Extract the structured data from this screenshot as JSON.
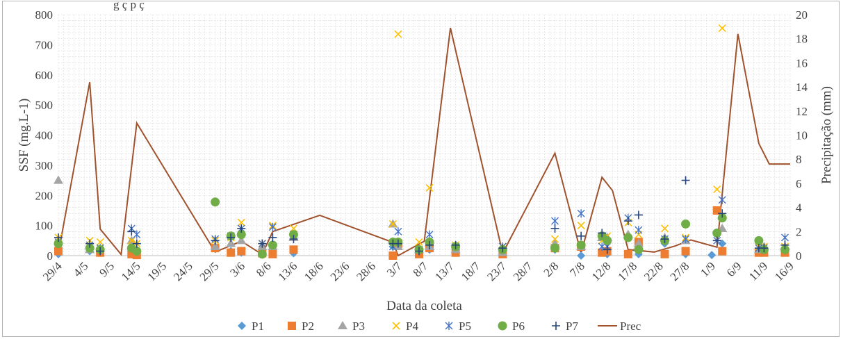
{
  "caption_fragment": "g                                         ç                                          p                                            ç",
  "chart_data": {
    "type": "scatter",
    "xlabel": "Data da coleta",
    "ylabel": "SSF (mg.L-1)",
    "y2label": "Precipitação (mm)",
    "ylim": [
      0,
      800
    ],
    "y2lim": [
      0,
      20
    ],
    "yticks": [
      0,
      100,
      200,
      300,
      400,
      500,
      600,
      700,
      800
    ],
    "y2ticks": [
      0,
      2,
      4,
      6,
      8,
      10,
      12,
      14,
      16,
      18,
      20
    ],
    "xlim": [
      "2018-04-29",
      "2018-09-16"
    ],
    "x_tick_labels": [
      "29/4",
      "4/5",
      "9/5",
      "14/5",
      "19/5",
      "24/5",
      "29/5",
      "3/6",
      "8/6",
      "13/6",
      "18/6",
      "23/6",
      "28/6",
      "3/7",
      "8/7",
      "13/7",
      "18/7",
      "23/7",
      "28/7",
      "2/8",
      "7/8",
      "12/8",
      "17/8",
      "22/8",
      "27/8",
      "1/9",
      "6/9",
      "11/9",
      "16/9"
    ],
    "x_tick_dates": [
      "2018-04-29",
      "2018-05-04",
      "2018-05-09",
      "2018-05-14",
      "2018-05-19",
      "2018-05-24",
      "2018-05-29",
      "2018-06-03",
      "2018-06-08",
      "2018-06-13",
      "2018-06-18",
      "2018-06-23",
      "2018-06-28",
      "2018-07-03",
      "2018-07-08",
      "2018-07-13",
      "2018-07-18",
      "2018-07-23",
      "2018-07-28",
      "2018-08-02",
      "2018-08-07",
      "2018-08-12",
      "2018-08-17",
      "2018-08-22",
      "2018-08-27",
      "2018-09-01",
      "2018-09-06",
      "2018-09-11",
      "2018-09-16"
    ],
    "gridlines": "minor-dashed",
    "legend_position": "bottom",
    "series": [
      {
        "name": "P1",
        "marker": "diamond",
        "color": "#5b9bd5",
        "axis": "left",
        "x": [
          "2018-04-29",
          "2018-05-05",
          "2018-05-07",
          "2018-05-13",
          "2018-05-14",
          "2018-05-29",
          "2018-06-01",
          "2018-06-03",
          "2018-06-07",
          "2018-06-09",
          "2018-06-13",
          "2018-07-02",
          "2018-07-03",
          "2018-07-07",
          "2018-07-09",
          "2018-07-14",
          "2018-07-23",
          "2018-08-02",
          "2018-08-07",
          "2018-08-11",
          "2018-08-12",
          "2018-08-16",
          "2018-08-18",
          "2018-08-23",
          "2018-08-27",
          "2018-09-01",
          "2018-09-03",
          "2018-09-10",
          "2018-09-11",
          "2018-09-15"
        ],
        "y": [
          5,
          15,
          10,
          5,
          2,
          30,
          15,
          10,
          8,
          10,
          8,
          30,
          35,
          10,
          20,
          10,
          10,
          20,
          0,
          10,
          5,
          5,
          5,
          40,
          5,
          2,
          40,
          15,
          10,
          10
        ]
      },
      {
        "name": "P2",
        "marker": "square",
        "color": "#ed7d31",
        "axis": "left",
        "x": [
          "2018-04-29",
          "2018-05-07",
          "2018-05-13",
          "2018-05-14",
          "2018-05-29",
          "2018-06-01",
          "2018-06-03",
          "2018-06-07",
          "2018-06-09",
          "2018-06-13",
          "2018-07-02",
          "2018-07-03",
          "2018-07-07",
          "2018-07-09",
          "2018-07-14",
          "2018-07-23",
          "2018-08-02",
          "2018-08-07",
          "2018-08-11",
          "2018-08-12",
          "2018-08-16",
          "2018-08-18",
          "2018-08-23",
          "2018-08-27",
          "2018-09-02",
          "2018-09-03",
          "2018-09-10",
          "2018-09-11",
          "2018-09-15"
        ],
        "y": [
          15,
          10,
          5,
          2,
          25,
          10,
          15,
          8,
          5,
          20,
          0,
          40,
          5,
          25,
          10,
          5,
          25,
          30,
          10,
          15,
          5,
          45,
          5,
          15,
          150,
          15,
          10,
          10,
          10
        ]
      },
      {
        "name": "P3",
        "marker": "triangle",
        "color": "#a5a5a5",
        "axis": "left",
        "x": [
          "2018-04-29",
          "2018-05-05",
          "2018-05-13",
          "2018-05-29",
          "2018-06-01",
          "2018-06-03",
          "2018-06-07",
          "2018-06-09",
          "2018-06-13",
          "2018-07-02",
          "2018-07-03",
          "2018-07-07",
          "2018-07-09",
          "2018-07-14",
          "2018-07-23",
          "2018-08-02",
          "2018-08-07",
          "2018-08-11",
          "2018-08-12",
          "2018-08-16",
          "2018-08-18",
          "2018-08-23",
          "2018-08-27",
          "2018-09-03",
          "2018-09-10",
          "2018-09-11",
          "2018-09-15"
        ],
        "y": [
          250,
          20,
          50,
          30,
          40,
          50,
          30,
          30,
          60,
          105,
          30,
          20,
          30,
          20,
          10,
          40,
          30,
          60,
          60,
          70,
          40,
          60,
          50,
          90,
          20,
          30,
          30
        ]
      },
      {
        "name": "P4",
        "marker": "x",
        "color": "#ffc000",
        "axis": "left",
        "x": [
          "2018-04-29",
          "2018-05-05",
          "2018-05-07",
          "2018-05-13",
          "2018-05-14",
          "2018-05-29",
          "2018-06-01",
          "2018-06-03",
          "2018-06-07",
          "2018-06-09",
          "2018-06-13",
          "2018-07-02",
          "2018-07-03",
          "2018-07-07",
          "2018-07-09",
          "2018-07-14",
          "2018-07-23",
          "2018-08-02",
          "2018-08-07",
          "2018-08-11",
          "2018-08-12",
          "2018-08-16",
          "2018-08-18",
          "2018-08-23",
          "2018-08-27",
          "2018-09-02",
          "2018-09-03",
          "2018-09-10",
          "2018-09-11",
          "2018-09-15"
        ],
        "y": [
          60,
          50,
          45,
          50,
          40,
          50,
          60,
          110,
          40,
          100,
          90,
          105,
          735,
          45,
          225,
          35,
          30,
          55,
          100,
          50,
          65,
          110,
          70,
          90,
          60,
          220,
          755,
          30,
          30,
          30
        ]
      },
      {
        "name": "P5",
        "marker": "star",
        "color": "#4472c4",
        "axis": "left",
        "x": [
          "2018-04-29",
          "2018-05-05",
          "2018-05-07",
          "2018-05-13",
          "2018-05-14",
          "2018-05-29",
          "2018-06-01",
          "2018-06-03",
          "2018-06-07",
          "2018-06-09",
          "2018-06-13",
          "2018-07-02",
          "2018-07-03",
          "2018-07-07",
          "2018-07-09",
          "2018-07-14",
          "2018-07-23",
          "2018-08-02",
          "2018-08-07",
          "2018-08-11",
          "2018-08-12",
          "2018-08-16",
          "2018-08-18",
          "2018-08-23",
          "2018-08-27",
          "2018-09-02",
          "2018-09-03",
          "2018-09-10",
          "2018-09-11",
          "2018-09-15"
        ],
        "y": [
          45,
          35,
          25,
          90,
          70,
          55,
          65,
          90,
          40,
          95,
          70,
          30,
          80,
          20,
          70,
          30,
          30,
          115,
          140,
          30,
          30,
          125,
          85,
          55,
          55,
          50,
          185,
          25,
          25,
          60
        ]
      },
      {
        "name": "P6",
        "marker": "circle",
        "color": "#70ad47",
        "axis": "left",
        "x": [
          "2018-04-29",
          "2018-05-05",
          "2018-05-07",
          "2018-05-13",
          "2018-05-14",
          "2018-05-29",
          "2018-06-01",
          "2018-06-03",
          "2018-06-07",
          "2018-06-09",
          "2018-06-13",
          "2018-07-02",
          "2018-07-03",
          "2018-07-07",
          "2018-07-09",
          "2018-07-14",
          "2018-07-23",
          "2018-08-02",
          "2018-08-07",
          "2018-08-11",
          "2018-08-12",
          "2018-08-16",
          "2018-08-18",
          "2018-08-23",
          "2018-08-27",
          "2018-09-02",
          "2018-09-03",
          "2018-09-10",
          "2018-09-11",
          "2018-09-15"
        ],
        "y": [
          40,
          25,
          20,
          25,
          15,
          178,
          65,
          70,
          5,
          35,
          70,
          45,
          45,
          20,
          45,
          30,
          20,
          25,
          35,
          65,
          50,
          60,
          20,
          50,
          105,
          75,
          125,
          50,
          20,
          20
        ]
      },
      {
        "name": "P7",
        "marker": "plus",
        "color": "#264478",
        "axis": "left",
        "x": [
          "2018-04-29",
          "2018-05-05",
          "2018-05-07",
          "2018-05-13",
          "2018-05-14",
          "2018-05-29",
          "2018-06-01",
          "2018-06-03",
          "2018-06-07",
          "2018-06-09",
          "2018-06-13",
          "2018-07-02",
          "2018-07-03",
          "2018-07-07",
          "2018-07-09",
          "2018-07-14",
          "2018-07-23",
          "2018-08-02",
          "2018-08-07",
          "2018-08-11",
          "2018-08-12",
          "2018-08-16",
          "2018-08-18",
          "2018-08-23",
          "2018-08-27",
          "2018-09-02",
          "2018-09-03",
          "2018-09-10",
          "2018-09-11",
          "2018-09-15"
        ],
        "y": [
          60,
          40,
          15,
          80,
          40,
          50,
          60,
          90,
          40,
          60,
          55,
          40,
          40,
          15,
          35,
          35,
          25,
          90,
          65,
          75,
          20,
          115,
          135,
          55,
          250,
          50,
          140,
          25,
          25,
          35
        ]
      },
      {
        "name": "Prec",
        "marker": "line",
        "color": "#a0522d",
        "axis": "right",
        "x": [
          "2018-04-29",
          "2018-05-05",
          "2018-05-07",
          "2018-05-11",
          "2018-05-14",
          "2018-05-29",
          "2018-06-03",
          "2018-06-07",
          "2018-06-09",
          "2018-06-18",
          "2018-07-02",
          "2018-07-03",
          "2018-07-08",
          "2018-07-13",
          "2018-07-23",
          "2018-08-02",
          "2018-08-07",
          "2018-08-11",
          "2018-08-13",
          "2018-08-16",
          "2018-08-21",
          "2018-08-25",
          "2018-08-28",
          "2018-09-02",
          "2018-09-06",
          "2018-09-10",
          "2018-09-12",
          "2018-09-16"
        ],
        "y": [
          0.2,
          14.4,
          2.2,
          0.1,
          11,
          0.3,
          1.2,
          0.1,
          2,
          3.35,
          1.1,
          0,
          1.2,
          18.9,
          0.2,
          8.5,
          0.2,
          6.5,
          5.4,
          0.5,
          0.3,
          0.8,
          1.3,
          0.7,
          18.4,
          9.3,
          7.6,
          7.6
        ]
      }
    ]
  }
}
